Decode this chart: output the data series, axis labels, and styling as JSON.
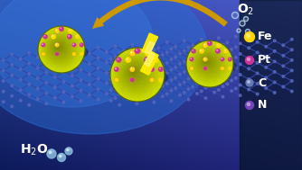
{
  "fig_width": 3.34,
  "fig_height": 1.89,
  "dpi": 100,
  "legend_items": [
    {
      "label": "Fe",
      "color": "#FFD700"
    },
    {
      "label": "Pt",
      "color": "#CC3399"
    },
    {
      "label": "C",
      "color": "#6677BB"
    },
    {
      "label": "N",
      "color": "#7744BB"
    }
  ],
  "o2_text": "O$_2$",
  "h2o_text": "H$_2$O",
  "carbon_node_color": "#5566BB",
  "carbon_edge_color": "#3344AA",
  "np_yellow": "#CCDD00",
  "np_yellow2": "#AACC00",
  "np_purple": "#CC3399",
  "np_fe": "#FFD700",
  "arrow_color": "#CC9900",
  "lightning_color": "#FFEE00",
  "lightning_outline": "#AACC00",
  "bubble_color": "#AACCDD",
  "water_color": "#88BBDD",
  "text_color": "white",
  "legend_bg": "#0a1a3a"
}
